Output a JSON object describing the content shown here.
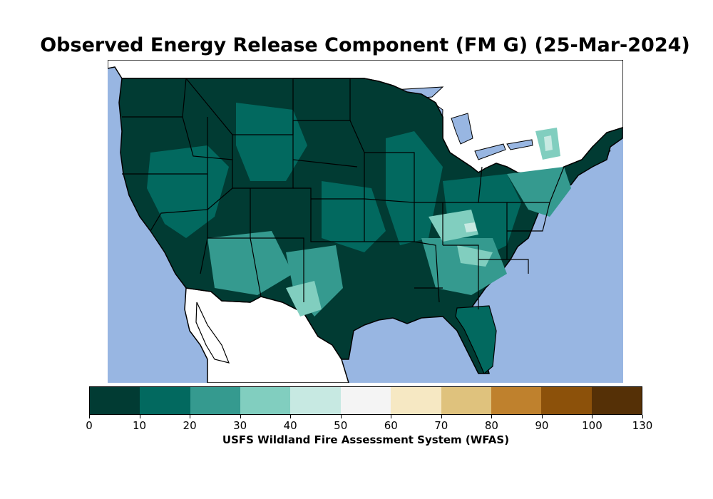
{
  "title": "Observed Energy Release Component (FM G) (25-Mar-2024)",
  "colors": {
    "ocean": "#98b6e2",
    "land_outside": "#ffffff",
    "border": "#000000"
  },
  "colorbar": {
    "label": "USFS Wildland Fire Assessment System (WFAS)",
    "ticks": [
      "0",
      "10",
      "20",
      "30",
      "40",
      "50",
      "60",
      "70",
      "80",
      "90",
      "100",
      "130"
    ],
    "colors": [
      "#013b33",
      "#02695f",
      "#359a8f",
      "#81cebf",
      "#c7e9e2",
      "#f4f4f4",
      "#f6e8c3",
      "#dfc27d",
      "#bf812d",
      "#8c510a",
      "#553006"
    ]
  }
}
